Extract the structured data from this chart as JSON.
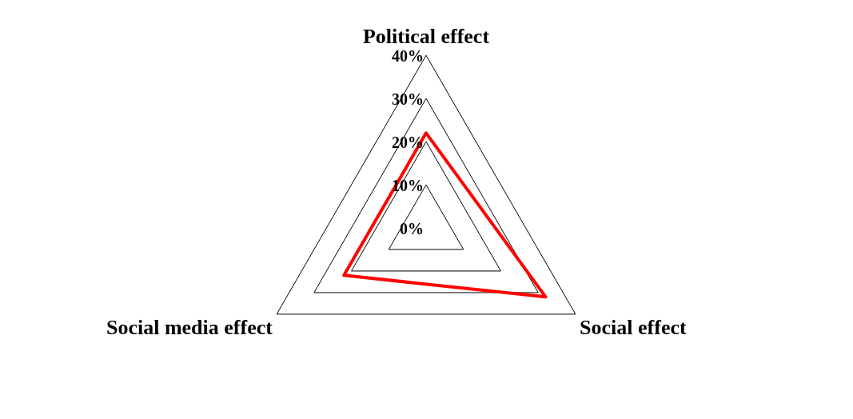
{
  "chart_data": {
    "type": "radar",
    "categories": [
      "Political effect",
      "Social effect",
      "Social media effect"
    ],
    "series": [
      {
        "color": "#ff0000",
        "values": [
          22,
          32,
          22
        ]
      }
    ],
    "ylim": [
      0,
      40
    ],
    "yticks": [
      {
        "value": 0,
        "label": "0%"
      },
      {
        "value": 10,
        "label": "10%"
      },
      {
        "value": 20,
        "label": "20%"
      },
      {
        "value": 30,
        "label": "30%"
      },
      {
        "value": 40,
        "label": "40%"
      }
    ],
    "grid": true,
    "legend": false,
    "marker": "none"
  }
}
